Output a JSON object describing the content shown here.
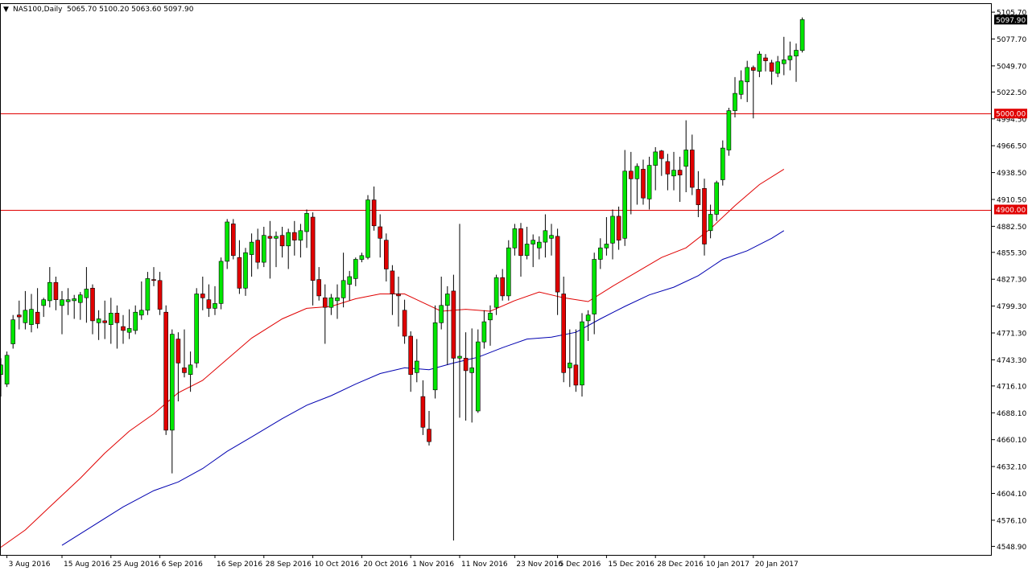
{
  "header": {
    "menu_glyph": "▼",
    "symbol": "NAS100,Daily",
    "ohlc": "5065.70 5100.20 5063.60 5097.90"
  },
  "colors": {
    "bull": "#00e600",
    "bear": "#e00000",
    "wick": "#000000",
    "ma_fast": "#e00000",
    "ma_slow": "#0000b0",
    "hline": "#e00000",
    "last_bg": "#000000",
    "last_fg": "#ffffff",
    "level_bg": "#e00000",
    "level_fg": "#ffffff"
  },
  "chart_data": {
    "type": "candlestick",
    "ylim": [
      4540,
      5115
    ],
    "y_ticks": [
      {
        "value": 5105.7,
        "label": "5105.70"
      },
      {
        "value": 5077.7,
        "label": "5077.70"
      },
      {
        "value": 5049.7,
        "label": "5049.70"
      },
      {
        "value": 5022.5,
        "label": "5022.50"
      },
      {
        "value": 4994.5,
        "label": "4994.50"
      },
      {
        "value": 4966.5,
        "label": "4966.50"
      },
      {
        "value": 4938.5,
        "label": "4938.50"
      },
      {
        "value": 4910.5,
        "label": "4910.50"
      },
      {
        "value": 4882.5,
        "label": "4882.50"
      },
      {
        "value": 4855.3,
        "label": "4855.30"
      },
      {
        "value": 4827.3,
        "label": "4827.30"
      },
      {
        "value": 4799.3,
        "label": "4799.30"
      },
      {
        "value": 4771.3,
        "label": "4771.30"
      },
      {
        "value": 4743.3,
        "label": "4743.30"
      },
      {
        "value": 4716.1,
        "label": "4716.10"
      },
      {
        "value": 4688.1,
        "label": "4688.10"
      },
      {
        "value": 4660.1,
        "label": "4660.10"
      },
      {
        "value": 4632.1,
        "label": "4632.10"
      },
      {
        "value": 4604.1,
        "label": "4604.10"
      },
      {
        "value": 4576.1,
        "label": "4576.10"
      },
      {
        "value": 4548.9,
        "label": "4548.90"
      }
    ],
    "x_ticks": [
      {
        "index": 1,
        "label": "3 Aug 2016"
      },
      {
        "index": 10,
        "label": "15 Aug 2016"
      },
      {
        "index": 18,
        "label": "25 Aug 2016"
      },
      {
        "index": 26,
        "label": "6 Sep 2016"
      },
      {
        "index": 35,
        "label": "16 Sep 2016"
      },
      {
        "index": 43,
        "label": "28 Sep 2016"
      },
      {
        "index": 51,
        "label": "10 Oct 2016"
      },
      {
        "index": 59,
        "label": "20 Oct 2016"
      },
      {
        "index": 67,
        "label": "1 Nov 2016"
      },
      {
        "index": 75,
        "label": "11 Nov 2016"
      },
      {
        "index": 84,
        "label": "23 Nov 2016"
      },
      {
        "index": 91,
        "label": "5 Dec 2016"
      },
      {
        "index": 99,
        "label": "15 Dec 2016"
      },
      {
        "index": 107,
        "label": "28 Dec 2016"
      },
      {
        "index": 115,
        "label": "10 Jan 2017"
      },
      {
        "index": 123,
        "label": "20 Jan 2017"
      }
    ],
    "candles": [
      {
        "o": 4728,
        "h": 4745,
        "l": 4705,
        "c": 4738
      },
      {
        "o": 4718,
        "h": 4752,
        "l": 4715,
        "c": 4748
      },
      {
        "o": 4760,
        "h": 4790,
        "l": 4755,
        "c": 4785
      },
      {
        "o": 4790,
        "h": 4805,
        "l": 4775,
        "c": 4788
      },
      {
        "o": 4782,
        "h": 4815,
        "l": 4775,
        "c": 4795
      },
      {
        "o": 4780,
        "h": 4812,
        "l": 4772,
        "c": 4796
      },
      {
        "o": 4793,
        "h": 4818,
        "l": 4776,
        "c": 4781
      },
      {
        "o": 4800,
        "h": 4808,
        "l": 4788,
        "c": 4806
      },
      {
        "o": 4805,
        "h": 4840,
        "l": 4798,
        "c": 4824
      },
      {
        "o": 4824,
        "h": 4830,
        "l": 4795,
        "c": 4806
      },
      {
        "o": 4800,
        "h": 4815,
        "l": 4770,
        "c": 4806
      },
      {
        "o": 4804,
        "h": 4818,
        "l": 4790,
        "c": 4806
      },
      {
        "o": 4805,
        "h": 4811,
        "l": 4786,
        "c": 4807
      },
      {
        "o": 4803,
        "h": 4814,
        "l": 4785,
        "c": 4811
      },
      {
        "o": 4808,
        "h": 4840,
        "l": 4782,
        "c": 4817
      },
      {
        "o": 4818,
        "h": 4822,
        "l": 4770,
        "c": 4784
      },
      {
        "o": 4782,
        "h": 4795,
        "l": 4764,
        "c": 4786
      },
      {
        "o": 4784,
        "h": 4805,
        "l": 4765,
        "c": 4782
      },
      {
        "o": 4780,
        "h": 4808,
        "l": 4760,
        "c": 4792
      },
      {
        "o": 4792,
        "h": 4800,
        "l": 4755,
        "c": 4782
      },
      {
        "o": 4778,
        "h": 4790,
        "l": 4760,
        "c": 4774
      },
      {
        "o": 4772,
        "h": 4796,
        "l": 4765,
        "c": 4776
      },
      {
        "o": 4774,
        "h": 4800,
        "l": 4770,
        "c": 4793
      },
      {
        "o": 4790,
        "h": 4825,
        "l": 4785,
        "c": 4795
      },
      {
        "o": 4795,
        "h": 4835,
        "l": 4790,
        "c": 4828
      },
      {
        "o": 4827,
        "h": 4840,
        "l": 4820,
        "c": 4826
      },
      {
        "o": 4826,
        "h": 4835,
        "l": 4790,
        "c": 4796
      },
      {
        "o": 4793,
        "h": 4800,
        "l": 4665,
        "c": 4670
      },
      {
        "o": 4670,
        "h": 4775,
        "l": 4625,
        "c": 4770
      },
      {
        "o": 4765,
        "h": 4772,
        "l": 4700,
        "c": 4740
      },
      {
        "o": 4735,
        "h": 4775,
        "l": 4725,
        "c": 4730
      },
      {
        "o": 4728,
        "h": 4752,
        "l": 4710,
        "c": 4738
      },
      {
        "o": 4740,
        "h": 4818,
        "l": 4735,
        "c": 4812
      },
      {
        "o": 4812,
        "h": 4830,
        "l": 4795,
        "c": 4808
      },
      {
        "o": 4806,
        "h": 4822,
        "l": 4788,
        "c": 4797
      },
      {
        "o": 4797,
        "h": 4820,
        "l": 4790,
        "c": 4802
      },
      {
        "o": 4802,
        "h": 4850,
        "l": 4796,
        "c": 4846
      },
      {
        "o": 4846,
        "h": 4890,
        "l": 4838,
        "c": 4887
      },
      {
        "o": 4885,
        "h": 4890,
        "l": 4848,
        "c": 4852
      },
      {
        "o": 4850,
        "h": 4868,
        "l": 4812,
        "c": 4818
      },
      {
        "o": 4818,
        "h": 4860,
        "l": 4810,
        "c": 4855
      },
      {
        "o": 4853,
        "h": 4875,
        "l": 4830,
        "c": 4866
      },
      {
        "o": 4868,
        "h": 4880,
        "l": 4838,
        "c": 4845
      },
      {
        "o": 4845,
        "h": 4882,
        "l": 4840,
        "c": 4873
      },
      {
        "o": 4872,
        "h": 4888,
        "l": 4828,
        "c": 4870
      },
      {
        "o": 4870,
        "h": 4877,
        "l": 4840,
        "c": 4872
      },
      {
        "o": 4873,
        "h": 4882,
        "l": 4850,
        "c": 4862
      },
      {
        "o": 4862,
        "h": 4880,
        "l": 4838,
        "c": 4876
      },
      {
        "o": 4876,
        "h": 4888,
        "l": 4852,
        "c": 4868
      },
      {
        "o": 4868,
        "h": 4885,
        "l": 4850,
        "c": 4878
      },
      {
        "o": 4877,
        "h": 4900,
        "l": 4860,
        "c": 4896
      },
      {
        "o": 4892,
        "h": 4897,
        "l": 4800,
        "c": 4826
      },
      {
        "o": 4827,
        "h": 4840,
        "l": 4805,
        "c": 4810
      },
      {
        "o": 4808,
        "h": 4822,
        "l": 4760,
        "c": 4798
      },
      {
        "o": 4798,
        "h": 4812,
        "l": 4790,
        "c": 4808
      },
      {
        "o": 4805,
        "h": 4822,
        "l": 4786,
        "c": 4808
      },
      {
        "o": 4808,
        "h": 4855,
        "l": 4798,
        "c": 4826
      },
      {
        "o": 4822,
        "h": 4836,
        "l": 4805,
        "c": 4830
      },
      {
        "o": 4828,
        "h": 4850,
        "l": 4820,
        "c": 4848
      },
      {
        "o": 4848,
        "h": 4855,
        "l": 4845,
        "c": 4852
      },
      {
        "o": 4850,
        "h": 4915,
        "l": 4848,
        "c": 4910
      },
      {
        "o": 4910,
        "h": 4924,
        "l": 4878,
        "c": 4883
      },
      {
        "o": 4882,
        "h": 4895,
        "l": 4850,
        "c": 4870
      },
      {
        "o": 4868,
        "h": 4875,
        "l": 4825,
        "c": 4838
      },
      {
        "o": 4836,
        "h": 4842,
        "l": 4790,
        "c": 4812
      },
      {
        "o": 4812,
        "h": 4830,
        "l": 4778,
        "c": 4810
      },
      {
        "o": 4795,
        "h": 4806,
        "l": 4760,
        "c": 4768
      },
      {
        "o": 4768,
        "h": 4773,
        "l": 4710,
        "c": 4728
      },
      {
        "o": 4730,
        "h": 4765,
        "l": 4720,
        "c": 4742
      },
      {
        "o": 4705,
        "h": 4722,
        "l": 4665,
        "c": 4673
      },
      {
        "o": 4671,
        "h": 4690,
        "l": 4654,
        "c": 4658
      },
      {
        "o": 4712,
        "h": 4800,
        "l": 4703,
        "c": 4782
      },
      {
        "o": 4782,
        "h": 4830,
        "l": 4775,
        "c": 4800
      },
      {
        "o": 4800,
        "h": 4820,
        "l": 4738,
        "c": 4812
      },
      {
        "o": 4815,
        "h": 4832,
        "l": 4555,
        "c": 4745
      },
      {
        "o": 4745,
        "h": 4885,
        "l": 4683,
        "c": 4747
      },
      {
        "o": 4745,
        "h": 4772,
        "l": 4680,
        "c": 4732
      },
      {
        "o": 4730,
        "h": 4776,
        "l": 4678,
        "c": 4735
      },
      {
        "o": 4690,
        "h": 4775,
        "l": 4688,
        "c": 4762
      },
      {
        "o": 4762,
        "h": 4795,
        "l": 4755,
        "c": 4783
      },
      {
        "o": 4785,
        "h": 4800,
        "l": 4758,
        "c": 4792
      },
      {
        "o": 4798,
        "h": 4832,
        "l": 4790,
        "c": 4829
      },
      {
        "o": 4829,
        "h": 4838,
        "l": 4805,
        "c": 4810
      },
      {
        "o": 4810,
        "h": 4868,
        "l": 4805,
        "c": 4860
      },
      {
        "o": 4860,
        "h": 4885,
        "l": 4852,
        "c": 4880
      },
      {
        "o": 4880,
        "h": 4886,
        "l": 4830,
        "c": 4852
      },
      {
        "o": 4852,
        "h": 4882,
        "l": 4848,
        "c": 4864
      },
      {
        "o": 4864,
        "h": 4874,
        "l": 4840,
        "c": 4868
      },
      {
        "o": 4860,
        "h": 4872,
        "l": 4848,
        "c": 4866
      },
      {
        "o": 4866,
        "h": 4895,
        "l": 4850,
        "c": 4878
      },
      {
        "o": 4870,
        "h": 4885,
        "l": 4852,
        "c": 4873
      },
      {
        "o": 4872,
        "h": 4880,
        "l": 4790,
        "c": 4814
      },
      {
        "o": 4812,
        "h": 4830,
        "l": 4720,
        "c": 4730
      },
      {
        "o": 4735,
        "h": 4775,
        "l": 4715,
        "c": 4740
      },
      {
        "o": 4738,
        "h": 4775,
        "l": 4710,
        "c": 4717
      },
      {
        "o": 4717,
        "h": 4792,
        "l": 4705,
        "c": 4783
      },
      {
        "o": 4784,
        "h": 4795,
        "l": 4763,
        "c": 4790
      },
      {
        "o": 4791,
        "h": 4855,
        "l": 4770,
        "c": 4848
      },
      {
        "o": 4848,
        "h": 4870,
        "l": 4838,
        "c": 4860
      },
      {
        "o": 4860,
        "h": 4892,
        "l": 4852,
        "c": 4864
      },
      {
        "o": 4865,
        "h": 4900,
        "l": 4848,
        "c": 4893
      },
      {
        "o": 4893,
        "h": 4903,
        "l": 4858,
        "c": 4868
      },
      {
        "o": 4870,
        "h": 4962,
        "l": 4862,
        "c": 4940
      },
      {
        "o": 4940,
        "h": 4960,
        "l": 4895,
        "c": 4932
      },
      {
        "o": 4932,
        "h": 4948,
        "l": 4905,
        "c": 4945
      },
      {
        "o": 4942,
        "h": 4952,
        "l": 4905,
        "c": 4912
      },
      {
        "o": 4911,
        "h": 4955,
        "l": 4900,
        "c": 4946
      },
      {
        "o": 4946,
        "h": 4965,
        "l": 4920,
        "c": 4960
      },
      {
        "o": 4961,
        "h": 4962,
        "l": 4935,
        "c": 4953
      },
      {
        "o": 4950,
        "h": 4958,
        "l": 4920,
        "c": 4937
      },
      {
        "o": 4935,
        "h": 4960,
        "l": 4920,
        "c": 4941
      },
      {
        "o": 4941,
        "h": 4955,
        "l": 4908,
        "c": 4936
      },
      {
        "o": 4945,
        "h": 4993,
        "l": 4918,
        "c": 4962
      },
      {
        "o": 4962,
        "h": 4978,
        "l": 4915,
        "c": 4923
      },
      {
        "o": 4921,
        "h": 4940,
        "l": 4892,
        "c": 4905
      },
      {
        "o": 4922,
        "h": 4932,
        "l": 4852,
        "c": 4864
      },
      {
        "o": 4878,
        "h": 4905,
        "l": 4870,
        "c": 4895
      },
      {
        "o": 4895,
        "h": 4930,
        "l": 4888,
        "c": 4928
      },
      {
        "o": 4931,
        "h": 4972,
        "l": 4925,
        "c": 4964
      },
      {
        "o": 4962,
        "h": 5006,
        "l": 4956,
        "c": 5003
      },
      {
        "o": 5003,
        "h": 5038,
        "l": 4996,
        "c": 5021
      },
      {
        "o": 5020,
        "h": 5045,
        "l": 5015,
        "c": 5034
      },
      {
        "o": 5033,
        "h": 5055,
        "l": 5012,
        "c": 5048
      },
      {
        "o": 5048,
        "h": 5050,
        "l": 4995,
        "c": 5045
      },
      {
        "o": 5044,
        "h": 5065,
        "l": 5038,
        "c": 5062
      },
      {
        "o": 5058,
        "h": 5062,
        "l": 5044,
        "c": 5055
      },
      {
        "o": 5053,
        "h": 5056,
        "l": 5030,
        "c": 5044
      },
      {
        "o": 5042,
        "h": 5060,
        "l": 5038,
        "c": 5054
      },
      {
        "o": 5052,
        "h": 5080,
        "l": 5040,
        "c": 5056
      },
      {
        "o": 5056,
        "h": 5075,
        "l": 5045,
        "c": 5060
      },
      {
        "o": 5060,
        "h": 5073,
        "l": 5033,
        "c": 5066
      },
      {
        "o": 5065.7,
        "h": 5100.2,
        "l": 5063.6,
        "c": 5097.9
      }
    ],
    "series": [
      {
        "type": "line",
        "points": [
          [
            0,
            4548
          ],
          [
            4,
            4566
          ],
          [
            8,
            4590
          ],
          [
            13,
            4620
          ],
          [
            17,
            4646
          ],
          [
            21,
            4669
          ],
          [
            25,
            4687
          ],
          [
            29,
            4709
          ],
          [
            33,
            4722
          ],
          [
            37,
            4744
          ],
          [
            41,
            4766
          ],
          [
            46,
            4786
          ],
          [
            50,
            4797
          ],
          [
            54,
            4799
          ],
          [
            58,
            4807
          ],
          [
            62,
            4812
          ],
          [
            66,
            4812
          ],
          [
            68,
            4806
          ],
          [
            72,
            4794
          ],
          [
            76,
            4796
          ],
          [
            80,
            4794
          ],
          [
            84,
            4805
          ],
          [
            88,
            4814
          ],
          [
            92,
            4808
          ],
          [
            96,
            4804
          ],
          [
            100,
            4820
          ],
          [
            104,
            4835
          ],
          [
            108,
            4850
          ],
          [
            112,
            4860
          ],
          [
            116,
            4880
          ],
          [
            120,
            4904
          ],
          [
            124,
            4926
          ],
          [
            128,
            4942
          ]
        ]
      },
      {
        "type": "line",
        "points": [
          [
            10,
            4550
          ],
          [
            15,
            4570
          ],
          [
            20,
            4590
          ],
          [
            25,
            4607
          ],
          [
            29,
            4616
          ],
          [
            33,
            4630
          ],
          [
            37,
            4648
          ],
          [
            41,
            4663
          ],
          [
            46,
            4682
          ],
          [
            50,
            4696
          ],
          [
            54,
            4706
          ],
          [
            58,
            4718
          ],
          [
            62,
            4729
          ],
          [
            66,
            4735
          ],
          [
            70,
            4733
          ],
          [
            74,
            4740
          ],
          [
            78,
            4746
          ],
          [
            82,
            4756
          ],
          [
            86,
            4765
          ],
          [
            90,
            4767
          ],
          [
            94,
            4772
          ],
          [
            98,
            4786
          ],
          [
            102,
            4799
          ],
          [
            106,
            4811
          ],
          [
            110,
            4819
          ],
          [
            114,
            4831
          ],
          [
            118,
            4848
          ],
          [
            122,
            4857
          ],
          [
            126,
            4870
          ],
          [
            128,
            4878
          ]
        ]
      }
    ],
    "hlines": [
      {
        "value": 5000.0,
        "label": "5000.00"
      },
      {
        "value": 4900.0,
        "label": "4900.00"
      }
    ],
    "last_price": {
      "value": 5097.9,
      "label": "5097.90"
    }
  }
}
